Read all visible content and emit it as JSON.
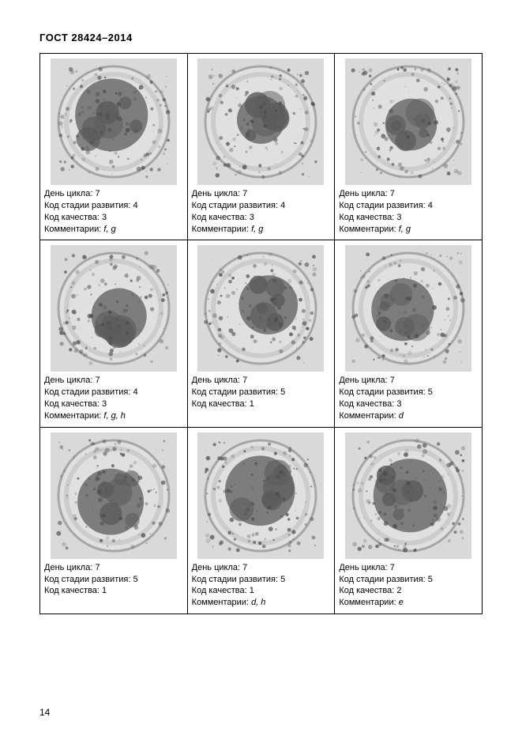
{
  "header": "ГОСТ 28424–2014",
  "pageNumber": "14",
  "labels": {
    "day": "День цикла:",
    "stage": "Код стадии развития:",
    "quality": "Код качества:",
    "comments": "Комментарии:"
  },
  "cells": [
    {
      "day": "7",
      "stage": "4",
      "quality": "3",
      "comments": "f, g"
    },
    {
      "day": "7",
      "stage": "4",
      "quality": "3",
      "comments": "f, g"
    },
    {
      "day": "7",
      "stage": "4",
      "quality": "3",
      "comments": "f, g"
    },
    {
      "day": "7",
      "stage": "4",
      "quality": "3",
      "comments": "f, g, h"
    },
    {
      "day": "7",
      "stage": "5",
      "quality": "1",
      "comments": ""
    },
    {
      "day": "7",
      "stage": "5",
      "quality": "3",
      "comments": "d"
    },
    {
      "day": "7",
      "stage": "5",
      "quality": "1",
      "comments": ""
    },
    {
      "day": "7",
      "stage": "5",
      "quality": "1",
      "comments": "d, h"
    },
    {
      "day": "7",
      "stage": "5",
      "quality": "2",
      "comments": "e"
    }
  ],
  "imageColors": {
    "bg": "#d9d9d9",
    "ringOuter": "#8f8f8f",
    "ringMid": "#b7b7b7",
    "mass": "#5c5c5c",
    "speck": "#474747",
    "light": "#e5e5e5"
  }
}
